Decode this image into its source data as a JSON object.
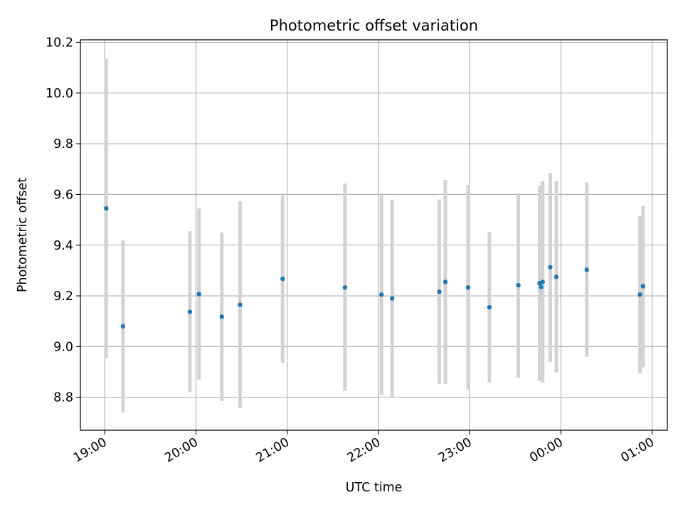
{
  "chart_data": {
    "type": "scatter",
    "title": "Photometric offset variation",
    "xlabel": "UTC time",
    "ylabel": "Photometric offset",
    "grid": true,
    "x_axis": {
      "kind": "time",
      "start": "19:00",
      "tick_labels": [
        "19:00",
        "20:00",
        "21:00",
        "22:00",
        "23:00",
        "00:00",
        "01:00"
      ],
      "range": [
        "18:44",
        "01:10"
      ]
    },
    "y_axis": {
      "tick_values": [
        8.8,
        9.0,
        9.2,
        9.4,
        9.6,
        9.8,
        10.0,
        10.2
      ],
      "tick_labels": [
        "8.8",
        "9.0",
        "9.2",
        "9.4",
        "9.6",
        "9.8",
        "10.0",
        "10.2"
      ],
      "ylim": [
        8.67,
        10.21
      ]
    },
    "colors": {
      "marker": "#1f77b4",
      "error_bar": "#d3d3d3",
      "grid": "#b0b0b0"
    },
    "points": [
      {
        "time": "19:01",
        "y": 9.545,
        "y_lo": 8.955,
        "y_hi": 10.135
      },
      {
        "time": "19:12",
        "y": 9.08,
        "y_lo": 8.74,
        "y_hi": 9.42
      },
      {
        "time": "19:56",
        "y": 9.137,
        "y_lo": 8.82,
        "y_hi": 9.455
      },
      {
        "time": "20:02",
        "y": 9.207,
        "y_lo": 8.87,
        "y_hi": 9.545
      },
      {
        "time": "20:17",
        "y": 9.118,
        "y_lo": 8.785,
        "y_hi": 9.45
      },
      {
        "time": "20:29",
        "y": 9.165,
        "y_lo": 8.757,
        "y_hi": 9.573
      },
      {
        "time": "20:57",
        "y": 9.267,
        "y_lo": 8.935,
        "y_hi": 9.597
      },
      {
        "time": "21:38",
        "y": 9.233,
        "y_lo": 8.825,
        "y_hi": 9.643
      },
      {
        "time": "22:02",
        "y": 9.205,
        "y_lo": 8.81,
        "y_hi": 9.597
      },
      {
        "time": "22:09",
        "y": 9.19,
        "y_lo": 8.8,
        "y_hi": 9.58
      },
      {
        "time": "22:40",
        "y": 9.216,
        "y_lo": 8.853,
        "y_hi": 9.58
      },
      {
        "time": "22:44",
        "y": 9.255,
        "y_lo": 8.853,
        "y_hi": 9.657
      },
      {
        "time": "22:59",
        "y": 9.233,
        "y_lo": 8.83,
        "y_hi": 9.637
      },
      {
        "time": "23:13",
        "y": 9.155,
        "y_lo": 8.858,
        "y_hi": 9.453
      },
      {
        "time": "23:32",
        "y": 9.242,
        "y_lo": 8.878,
        "y_hi": 9.605
      },
      {
        "time": "23:46",
        "y": 9.25,
        "y_lo": 8.865,
        "y_hi": 9.635
      },
      {
        "time": "23:47",
        "y": 9.235,
        "y_lo": 8.865,
        "y_hi": 9.635
      },
      {
        "time": "23:48",
        "y": 9.255,
        "y_lo": 8.858,
        "y_hi": 9.652
      },
      {
        "time": "23:53",
        "y": 9.313,
        "y_lo": 8.94,
        "y_hi": 9.685
      },
      {
        "time": "23:57",
        "y": 9.275,
        "y_lo": 8.898,
        "y_hi": 9.652
      },
      {
        "time": "00:17",
        "y": 9.303,
        "y_lo": 8.96,
        "y_hi": 9.648
      },
      {
        "time": "00:52",
        "y": 9.205,
        "y_lo": 8.895,
        "y_hi": 9.515
      },
      {
        "time": "00:54",
        "y": 9.238,
        "y_lo": 8.918,
        "y_hi": 9.555
      }
    ]
  }
}
